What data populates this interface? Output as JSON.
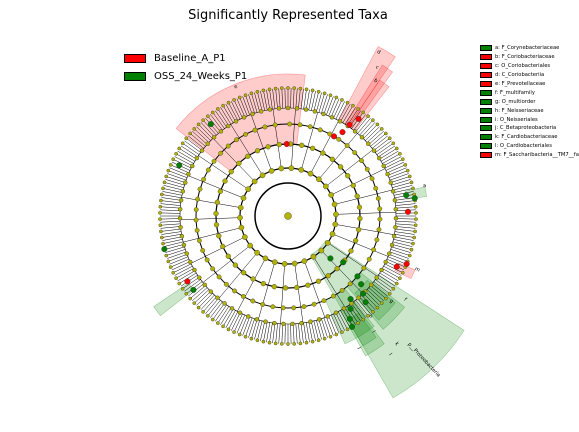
{
  "title": "Significantly Represented Taxa",
  "legend": [
    {
      "label": "Baseline_A_P1",
      "color": "#ff0000"
    },
    {
      "label": "OSS_24_Weeks_P1",
      "color": "#008000"
    }
  ],
  "taxa": [
    {
      "label": "a: F_Corynebacteriaceae",
      "color": "#008000"
    },
    {
      "label": "b: F_Coriobacteriaceae",
      "color": "#ff0000"
    },
    {
      "label": "c: O_Coriobacteriales",
      "color": "#ff0000"
    },
    {
      "label": "d: C_Coriobacteriia",
      "color": "#ff0000"
    },
    {
      "label": "e: F_Prevotellaceae",
      "color": "#ff0000"
    },
    {
      "label": "f: F_multifamily",
      "color": "#008000"
    },
    {
      "label": "g: O_multiorder",
      "color": "#008000"
    },
    {
      "label": "h: F_Neisseriaceae",
      "color": "#008000"
    },
    {
      "label": "i: O_Neisseriales",
      "color": "#008000"
    },
    {
      "label": "j: C_Betaproteobacteria",
      "color": "#008000"
    },
    {
      "label": "k: F_Cardiobacteriaceae",
      "color": "#008000"
    },
    {
      "label": "l: O_Cardiobacteriales",
      "color": "#008000"
    },
    {
      "label": "m: F_Saccharibacteria__TM7__fa",
      "color": "#ff0000"
    }
  ],
  "sector_labels": [
    "e",
    "d",
    "c",
    "b",
    "m",
    "a",
    "f",
    "g",
    "h",
    "i",
    "j",
    "k",
    "l",
    "p__Proteobacteria"
  ],
  "colors": {
    "node": "#b2b200",
    "baseline": "#ff0000",
    "oss": "#008000"
  }
}
